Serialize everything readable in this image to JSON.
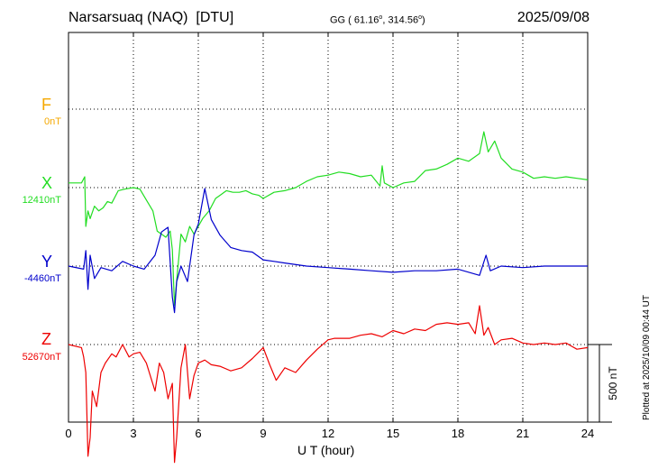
{
  "header": {
    "station": "Narsarsuaq (NAQ)",
    "source": "[DTU]",
    "coords_text": "GG ( 61.16",
    "coords_lon": ", 314.56",
    "coords_close": ")",
    "date": "2025/09/08"
  },
  "channels": [
    {
      "key": "F",
      "label": "F",
      "baseline": "0nT",
      "color": "#f5a800"
    },
    {
      "key": "X",
      "label": "X",
      "baseline": "12410nT",
      "color": "#22dd22"
    },
    {
      "key": "Y",
      "label": "Y",
      "baseline": "-4460nT",
      "color": "#0000cc"
    },
    {
      "key": "Z",
      "label": "Z",
      "baseline": "52670nT",
      "color": "#ee0000"
    }
  ],
  "plotted_note": "Plotted at 2025/10/09 00:44 UT",
  "chart_data": {
    "type": "line",
    "xlabel": "U T (hour)",
    "xticks": [
      0,
      3,
      6,
      9,
      12,
      15,
      18,
      21,
      24
    ],
    "xlim": [
      0,
      24
    ],
    "scale_bar_label": "500 nT",
    "scale_bar_nT": 500,
    "grid": true,
    "series": [
      {
        "name": "X",
        "color": "#22dd22",
        "baseline_nT": 12410,
        "x": [
          0,
          0.6,
          0.75,
          0.8,
          0.9,
          1.0,
          1.2,
          1.4,
          1.6,
          1.8,
          2.0,
          2.3,
          2.6,
          3.0,
          3.3,
          3.6,
          3.9,
          4.1,
          4.3,
          4.5,
          4.7,
          4.8,
          4.9,
          5.0,
          5.2,
          5.4,
          5.6,
          5.8,
          6.0,
          6.2,
          6.5,
          6.8,
          7.0,
          7.3,
          7.6,
          7.9,
          8.2,
          8.5,
          8.8,
          9.0,
          9.5,
          10.0,
          10.5,
          11.0,
          11.5,
          12.0,
          12.5,
          13.0,
          13.5,
          14.0,
          14.4,
          14.5,
          14.6,
          15.0,
          15.5,
          16.0,
          16.5,
          17.0,
          17.5,
          18.0,
          18.5,
          19.0,
          19.2,
          19.4,
          19.7,
          20.0,
          20.5,
          21.0,
          21.5,
          22.0,
          22.5,
          23.0,
          23.5,
          24.0
        ],
        "y": [
          30,
          30,
          70,
          -250,
          -150,
          -200,
          -120,
          -150,
          -130,
          -90,
          -100,
          -20,
          -10,
          0,
          -10,
          -80,
          -150,
          -280,
          -300,
          -320,
          -280,
          -400,
          -760,
          -600,
          -300,
          -350,
          -250,
          -300,
          -250,
          -200,
          -150,
          -70,
          -50,
          -20,
          -30,
          -30,
          -20,
          -40,
          -50,
          -70,
          -30,
          -20,
          0,
          40,
          70,
          80,
          100,
          90,
          70,
          80,
          10,
          140,
          30,
          0,
          30,
          40,
          110,
          120,
          150,
          190,
          170,
          220,
          360,
          230,
          300,
          190,
          120,
          100,
          60,
          70,
          60,
          70,
          60,
          50
        ]
      },
      {
        "name": "Y",
        "color": "#0000cc",
        "baseline_nT": -4460,
        "x": [
          0,
          0.7,
          0.8,
          0.9,
          1.0,
          1.2,
          1.5,
          2.0,
          2.5,
          3.0,
          3.5,
          4.0,
          4.3,
          4.6,
          4.8,
          4.9,
          5.0,
          5.2,
          5.5,
          5.8,
          6.0,
          6.3,
          6.6,
          7.0,
          7.5,
          8.0,
          8.5,
          9.0,
          9.5,
          10.0,
          11.0,
          12.0,
          13.0,
          14.0,
          15.0,
          16.0,
          17.0,
          18.0,
          19.0,
          19.3,
          19.5,
          20.0,
          21.0,
          22.0,
          23.0,
          24.0
        ],
        "y": [
          0,
          -20,
          100,
          -150,
          70,
          -80,
          -10,
          -30,
          30,
          0,
          -20,
          70,
          220,
          250,
          -200,
          -300,
          -100,
          0,
          -100,
          200,
          270,
          500,
          300,
          200,
          120,
          100,
          90,
          40,
          30,
          20,
          0,
          -10,
          -20,
          -30,
          -40,
          -30,
          -30,
          -20,
          -60,
          70,
          -30,
          0,
          -10,
          0,
          0,
          0
        ]
      },
      {
        "name": "Z",
        "color": "#ee0000",
        "baseline_nT": 52670,
        "x": [
          0,
          0.6,
          0.7,
          0.8,
          0.9,
          1.0,
          1.1,
          1.3,
          1.5,
          1.7,
          2.0,
          2.2,
          2.5,
          2.8,
          3.0,
          3.3,
          3.6,
          4.0,
          4.2,
          4.4,
          4.6,
          4.8,
          4.9,
          5.0,
          5.2,
          5.4,
          5.6,
          5.8,
          6.0,
          6.3,
          6.6,
          7.0,
          7.5,
          8.0,
          8.5,
          9.0,
          9.3,
          9.6,
          10.0,
          10.5,
          11.0,
          11.5,
          12.0,
          12.3,
          12.6,
          13.0,
          13.5,
          14.0,
          14.5,
          15.0,
          15.5,
          16.0,
          16.5,
          17.0,
          17.5,
          18.0,
          18.5,
          18.8,
          19.0,
          19.2,
          19.4,
          19.7,
          20.0,
          20.5,
          21.0,
          21.5,
          22.0,
          22.5,
          23.0,
          23.5,
          24.0
        ],
        "y": [
          0,
          -20,
          -80,
          -180,
          -720,
          -600,
          -300,
          -400,
          -180,
          -120,
          -60,
          -80,
          0,
          -80,
          -60,
          -50,
          -120,
          -300,
          -120,
          -180,
          -350,
          -250,
          -760,
          -600,
          -150,
          0,
          -350,
          -200,
          -120,
          -100,
          -130,
          -140,
          -170,
          -150,
          -90,
          -20,
          -130,
          -230,
          -150,
          -180,
          -100,
          -30,
          30,
          40,
          40,
          40,
          60,
          70,
          50,
          90,
          70,
          100,
          90,
          130,
          140,
          130,
          140,
          70,
          250,
          60,
          110,
          0,
          30,
          40,
          10,
          0,
          10,
          0,
          10,
          -30,
          -20
        ]
      }
    ]
  }
}
